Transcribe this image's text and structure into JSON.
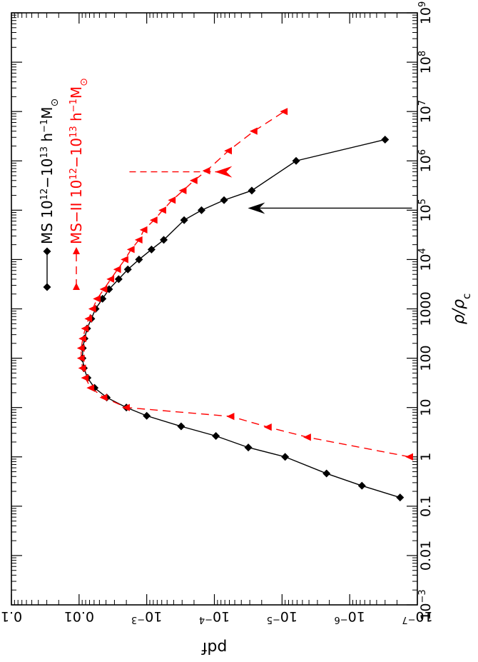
{
  "chart_data": {
    "type": "line",
    "orientation": "rotated-ccw-90",
    "xscale": "log",
    "yscale": "log",
    "xlabel_pre": "ρ/ρ",
    "xlabel_sub": "c",
    "ylabel": "pdf",
    "xlim": [
      0.001,
      1000000000
    ],
    "ylim": [
      1e-07,
      0.1
    ],
    "x_ticks": [
      {
        "value": 0.001,
        "label_html": "10<tspan baseline-shift=\"super\" font-size=\"13\">−3</tspan>"
      },
      {
        "value": 0.01,
        "label": "0.01"
      },
      {
        "value": 0.1,
        "label": "0.1"
      },
      {
        "value": 1,
        "label": "1"
      },
      {
        "value": 10,
        "label": "10"
      },
      {
        "value": 100,
        "label": "100"
      },
      {
        "value": 1000,
        "label": "1000"
      },
      {
        "value": 10000,
        "label_html": "10<tspan baseline-shift=\"super\" font-size=\"13\">4</tspan>"
      },
      {
        "value": 100000,
        "label_html": "10<tspan baseline-shift=\"super\" font-size=\"13\">5</tspan>"
      },
      {
        "value": 1000000,
        "label_html": "10<tspan baseline-shift=\"super\" font-size=\"13\">6</tspan>"
      },
      {
        "value": 10000000,
        "label_html": "10<tspan baseline-shift=\"super\" font-size=\"13\">7</tspan>"
      },
      {
        "value": 100000000,
        "label_html": "10<tspan baseline-shift=\"super\" font-size=\"13\">8</tspan>"
      },
      {
        "value": 1000000000,
        "label_html": "10<tspan baseline-shift=\"super\" font-size=\"13\">9</tspan>"
      }
    ],
    "y_ticks": [
      {
        "value": 1e-07,
        "label_html": "10<tspan baseline-shift=\"super\" font-size=\"13\">−7</tspan>"
      },
      {
        "value": 1e-06,
        "label_html": "10<tspan baseline-shift=\"super\" font-size=\"13\">−6</tspan>"
      },
      {
        "value": 1e-05,
        "label_html": "10<tspan baseline-shift=\"super\" font-size=\"13\">−5</tspan>"
      },
      {
        "value": 0.0001,
        "label_html": "10<tspan baseline-shift=\"super\" font-size=\"13\">−4</tspan>"
      },
      {
        "value": 0.001,
        "label_html": "10<tspan baseline-shift=\"super\" font-size=\"13\">−3</tspan>"
      },
      {
        "value": 0.01,
        "label": "0.01"
      },
      {
        "value": 0.1,
        "label": "0.1"
      }
    ],
    "series": [
      {
        "name_html": "MS 10<tspan baseline-shift=\"super\" font-size=\"13\">12</tspan>−10<tspan baseline-shift=\"super\" font-size=\"13\">13</tspan> h<tspan baseline-shift=\"super\" font-size=\"13\">−1</tspan>M<tspan baseline-shift=\"sub\" font-size=\"14\">⊙</tspan>",
        "color": "#000000",
        "dash": "none",
        "marker": "diamond",
        "x": [
          0.15,
          0.26,
          0.46,
          1.0,
          1.55,
          2.65,
          4.15,
          6.8,
          10.0,
          16.0,
          25.0,
          40.0,
          63.0,
          100.0,
          160.0,
          250.0,
          400.0,
          630.0,
          1000.0,
          1600.0,
          2500.0,
          4000.0,
          6300.0,
          10000.0,
          16000.0,
          25000.0,
          63000.0,
          100000.0,
          160000.0,
          250000.0,
          1000000.0,
          2700000.0
        ],
        "y": [
          1.8e-07,
          6.6e-07,
          2.2e-06,
          9e-06,
          3.15e-05,
          9.5e-05,
          0.00031,
          0.001,
          0.002,
          0.0039,
          0.0059,
          0.0075,
          0.0085,
          0.0089,
          0.0088,
          0.0083,
          0.0076,
          0.0066,
          0.0057,
          0.0045,
          0.0036,
          0.0026,
          0.0019,
          0.0013,
          0.00085,
          0.00056,
          0.00028,
          0.000155,
          7.2e-05,
          2.8e-05,
          6.2e-06,
          3e-07
        ]
      },
      {
        "name_html": "MS−II 10<tspan baseline-shift=\"super\" font-size=\"13\">12</tspan>−10<tspan baseline-shift=\"super\" font-size=\"13\">13</tspan> h<tspan baseline-shift=\"super\" font-size=\"13\">−1</tspan>M<tspan baseline-shift=\"sub\" font-size=\"14\">⊙</tspan>",
        "color": "#ff0000",
        "dash": "11 7",
        "marker": "triangle-left",
        "x": [
          1.0,
          2.5,
          4.0,
          6.6,
          10.0,
          16.0,
          25.0,
          40.0,
          63.0,
          100.0,
          160.0,
          250.0,
          400.0,
          630.0,
          1000.0,
          1600.0,
          2500.0,
          4000.0,
          6300.0,
          10000.0,
          16000.0,
          25000.0,
          40000.0,
          63000.0,
          100000.0,
          160000.0,
          250000.0,
          400000.0,
          630000.0,
          1600000.0,
          4000000.0,
          10000000.0
        ],
        "y": [
          1.3e-07,
          4.2e-06,
          1.6e-05,
          5.7e-05,
          0.002,
          0.0043,
          0.0067,
          0.0081,
          0.0089,
          0.0093,
          0.0093,
          0.0088,
          0.0081,
          0.0072,
          0.0063,
          0.0054,
          0.0043,
          0.0034,
          0.0027,
          0.0021,
          0.0017,
          0.0013,
          0.0011,
          0.00078,
          0.00058,
          0.00042,
          0.00029,
          0.0002,
          0.00013,
          6.2e-05,
          2.6e-05,
          9.3e-06
        ]
      }
    ],
    "annotations": [
      {
        "type": "arrow",
        "color": "#000000",
        "dash": "none",
        "x": 110000,
        "y_start": 1.2e-07,
        "y_end": 3.2e-05
      },
      {
        "type": "arrow",
        "color": "#ff0000",
        "dash": "9 6",
        "x": 600000,
        "y_start": 0.0018,
        "y_end": 9.8e-05
      }
    ],
    "legend": [
      {
        "series": 0,
        "position": "upper region along left edge"
      },
      {
        "series": 1,
        "position": "below first legend entry"
      }
    ]
  }
}
